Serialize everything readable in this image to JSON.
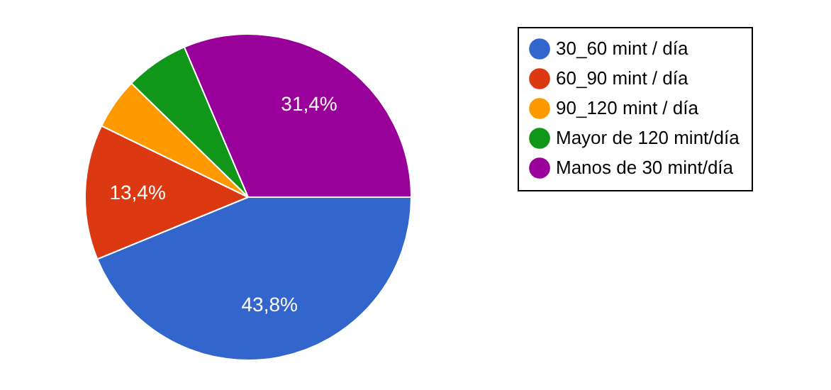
{
  "chart_data": {
    "type": "pie",
    "categories": [
      "30_60 mint / día",
      "60_90 mint / día",
      "90_120 mint / día",
      "Mayor de 120 mint/día",
      "Manos de 30 mint/día"
    ],
    "values": [
      43.8,
      13.4,
      5.1,
      6.3,
      31.4
    ],
    "colors": [
      "#3366cc",
      "#dc3912",
      "#ff9900",
      "#109618",
      "#990099"
    ],
    "value_labels": [
      "43,8%",
      "13,4%",
      null,
      null,
      "31,4%"
    ],
    "legend": "right"
  }
}
